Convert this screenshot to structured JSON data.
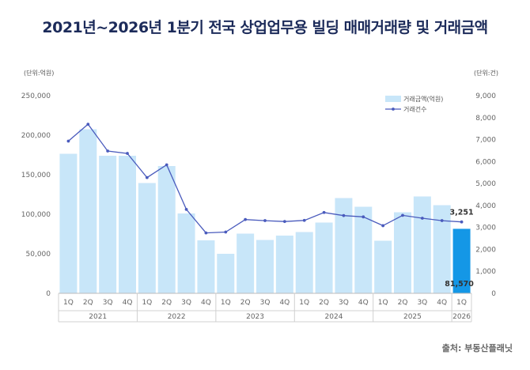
{
  "title": "2021년~2026년 1분기 전국 상업업무용 빌딩 매매거래량 및 거래금액",
  "source": "출처: 부동산플래닛",
  "chart_data": {
    "type": "bar",
    "left_unit": "(단위:억원)",
    "right_unit": "(단위:건)",
    "quarters": [
      "1Q",
      "2Q",
      "3Q",
      "4Q",
      "1Q",
      "2Q",
      "3Q",
      "4Q",
      "1Q",
      "2Q",
      "3Q",
      "4Q",
      "1Q",
      "2Q",
      "3Q",
      "4Q",
      "1Q",
      "2Q",
      "3Q",
      "4Q",
      "1Q"
    ],
    "years": [
      {
        "label": "2021",
        "count": 4
      },
      {
        "label": "2022",
        "count": 4
      },
      {
        "label": "2023",
        "count": 4
      },
      {
        "label": "2024",
        "count": 4
      },
      {
        "label": "2025",
        "count": 4
      },
      {
        "label": "2026",
        "count": 1
      }
    ],
    "series": [
      {
        "name": "거래금액(억원)",
        "type": "bar",
        "axis": "left",
        "color": "#c8e6f9",
        "highlight_color": "#1497e6",
        "values": [
          176500,
          207500,
          174000,
          174000,
          139500,
          161000,
          101000,
          67000,
          50000,
          75500,
          67500,
          73000,
          77500,
          89500,
          120500,
          109500,
          66500,
          102500,
          122500,
          111500,
          81570
        ]
      },
      {
        "name": "거래건수",
        "type": "line",
        "axis": "right",
        "color": "#4a5bbd",
        "values": [
          6930,
          7700,
          6480,
          6370,
          5270,
          5850,
          3820,
          2750,
          2790,
          3360,
          3310,
          3270,
          3320,
          3680,
          3540,
          3480,
          3080,
          3550,
          3420,
          3310,
          3251
        ]
      }
    ],
    "left_axis": {
      "min": 0,
      "max": 250000,
      "ticks": [
        "0",
        "50,000",
        "100,000",
        "150,000",
        "200,000",
        "250,000"
      ]
    },
    "right_axis": {
      "min": 0,
      "max": 9000,
      "ticks": [
        "0",
        "1,000",
        "2,000",
        "3,000",
        "4,000",
        "5,000",
        "6,000",
        "7,000",
        "8,000",
        "9,000"
      ]
    },
    "annotations": {
      "last_count": "3,251",
      "last_value": "81,570"
    },
    "legend_position": "top-right"
  }
}
